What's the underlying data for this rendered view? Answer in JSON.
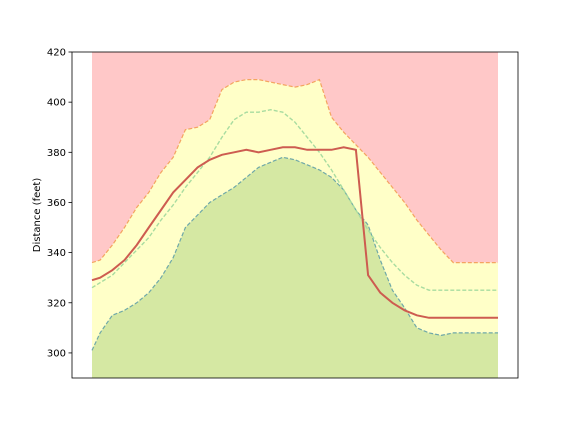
{
  "chart_data": {
    "type": "area",
    "title": "",
    "xlabel": "",
    "ylabel": "Distance (feet)",
    "xlim": [
      0,
      1
    ],
    "ylim": [
      290,
      420
    ],
    "yticks": [
      300,
      320,
      340,
      360,
      380,
      400,
      420
    ],
    "grid": false,
    "legend": "none",
    "colors": {
      "top_band": "#ffc8c8",
      "middle_band": "#ffffc8",
      "bottom_band": "#d5e8a3",
      "upper_edge": "#f4a460",
      "lower_edge": "#6fa8a8",
      "dashed_mid": "#a8dca0",
      "main_line": "#cd5c50"
    },
    "x": [
      0.0,
      0.02,
      0.05,
      0.08,
      0.11,
      0.14,
      0.17,
      0.2,
      0.23,
      0.26,
      0.29,
      0.32,
      0.35,
      0.38,
      0.41,
      0.44,
      0.47,
      0.5,
      0.53,
      0.56,
      0.59,
      0.62,
      0.65,
      0.68,
      0.71,
      0.74,
      0.77,
      0.8,
      0.83,
      0.86,
      0.89,
      0.92,
      0.95,
      0.98,
      1.0
    ],
    "series": [
      {
        "role": "upper_edge",
        "values": [
          336,
          337,
          343,
          350,
          358,
          364,
          372,
          378,
          389,
          390,
          393,
          405,
          408,
          409,
          409,
          408,
          407,
          406,
          407,
          409,
          394,
          388,
          383,
          378,
          372,
          366,
          360,
          353,
          347,
          341,
          336,
          336,
          336,
          336,
          336
        ]
      },
      {
        "role": "dashed_mid",
        "values": [
          326,
          328,
          331,
          336,
          341,
          346,
          353,
          359,
          366,
          372,
          378,
          386,
          393,
          396,
          396,
          397,
          396,
          392,
          386,
          380,
          373,
          365,
          357,
          349,
          342,
          336,
          331,
          327,
          325,
          325,
          325,
          325,
          325,
          325,
          325
        ]
      },
      {
        "role": "main_line",
        "values": [
          329,
          330,
          333,
          337,
          343,
          350,
          357,
          364,
          369,
          374,
          377,
          379,
          380,
          381,
          380,
          381,
          382,
          382,
          381,
          381,
          381,
          382,
          381,
          331,
          324,
          320,
          317,
          315,
          314,
          314,
          314,
          314,
          314,
          314,
          314
        ]
      },
      {
        "role": "lower_edge",
        "values": [
          301,
          308,
          315,
          317,
          320,
          324,
          330,
          338,
          350,
          355,
          360,
          363,
          366,
          370,
          374,
          376,
          378,
          377,
          375,
          373,
          370,
          365,
          357,
          351,
          337,
          325,
          318,
          310,
          308,
          307,
          308,
          308,
          308,
          308,
          308
        ]
      }
    ]
  }
}
